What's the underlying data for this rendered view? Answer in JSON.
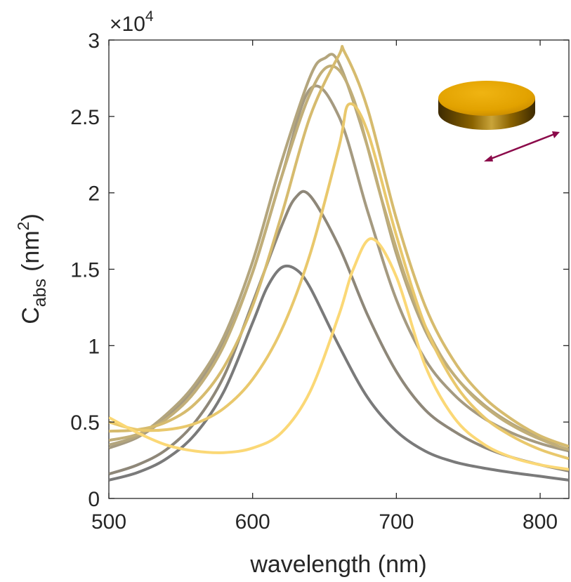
{
  "chart_data": {
    "type": "line",
    "xlabel": "wavelength (nm)",
    "ylabel": {
      "main": "C",
      "subscript": "abs",
      "unit_prefix": "(nm",
      "unit_superscript": "2",
      "unit_suffix": ")"
    },
    "multiplier": {
      "prefix": "×10",
      "exponent": "4"
    },
    "xlim": [
      500,
      820
    ],
    "ylim": [
      0,
      30000
    ],
    "x_ticks": [
      500,
      600,
      700,
      800
    ],
    "y_ticks": [
      0,
      5000,
      10000,
      15000,
      20000,
      25000,
      30000
    ],
    "x_tick_labels": [
      "500",
      "600",
      "700",
      "800"
    ],
    "y_tick_labels": [
      "0",
      "0.5",
      "1",
      "1.5",
      "2",
      "2.5",
      "3"
    ],
    "grid": false,
    "inset": {
      "icon": "gold-disk-icon",
      "polarization_icon": "polarization-arrow-icon",
      "disk_color": "#e2a200",
      "arrow_color": "#8b0a4a"
    },
    "series": [
      {
        "color": "#7a7a7a",
        "x": [
          500,
          520,
          540,
          560,
          580,
          600,
          610,
          620,
          630,
          640,
          660,
          680,
          700,
          720,
          740,
          760,
          780,
          800,
          820
        ],
        "y": [
          1200,
          1700,
          2600,
          4200,
          7000,
          11500,
          13800,
          15100,
          15000,
          13800,
          10000,
          6600,
          4400,
          3100,
          2400,
          2000,
          1700,
          1450,
          1200
        ]
      },
      {
        "color": "#8e8779",
        "x": [
          500,
          520,
          540,
          560,
          580,
          600,
          620,
          630,
          640,
          660,
          680,
          700,
          720,
          740,
          760,
          780,
          800,
          820
        ],
        "y": [
          1600,
          2200,
          3200,
          5000,
          8000,
          12800,
          17800,
          19700,
          19800,
          16500,
          12000,
          8300,
          5800,
          4400,
          3400,
          2700,
          2200,
          1800
        ]
      },
      {
        "color": "#a59a80",
        "x": [
          500,
          520,
          540,
          560,
          580,
          600,
          620,
          640,
          660,
          680,
          700,
          720,
          740,
          760,
          780,
          800,
          820
        ],
        "y": [
          3300,
          4000,
          5300,
          7300,
          10200,
          14800,
          21000,
          26800,
          25000,
          18800,
          13000,
          9100,
          6800,
          5300,
          4300,
          3600,
          3100
        ]
      },
      {
        "color": "#b3a57d",
        "x": [
          500,
          520,
          540,
          560,
          580,
          600,
          620,
          640,
          650,
          660,
          680,
          700,
          720,
          740,
          760,
          780,
          800,
          820
        ],
        "y": [
          3500,
          4100,
          5500,
          7500,
          10600,
          15500,
          22000,
          27600,
          28800,
          28500,
          23000,
          16000,
          11000,
          8100,
          6200,
          4900,
          4000,
          3400
        ]
      },
      {
        "color": "#c1ae78",
        "x": [
          500,
          520,
          540,
          560,
          580,
          600,
          620,
          640,
          655,
          670,
          690,
          710,
          730,
          750,
          770,
          790,
          810,
          820
        ],
        "y": [
          3800,
          4200,
          5200,
          7000,
          10000,
          14800,
          21000,
          26500,
          28300,
          26200,
          19500,
          13500,
          9500,
          7000,
          5400,
          4300,
          3500,
          3200
        ]
      },
      {
        "color": "#d6bb6e",
        "x": [
          500,
          520,
          540,
          560,
          580,
          600,
          620,
          640,
          660,
          664,
          680,
          700,
          720,
          740,
          760,
          780,
          800,
          820
        ],
        "y": [
          4400,
          4500,
          5000,
          6200,
          8600,
          12600,
          18500,
          25000,
          29000,
          29200,
          25500,
          18300,
          12600,
          9000,
          6700,
          5200,
          4100,
          3400
        ]
      },
      {
        "color": "#e9c86c",
        "x": [
          500,
          520,
          540,
          560,
          580,
          600,
          620,
          640,
          660,
          667,
          680,
          700,
          720,
          740,
          760,
          780,
          800,
          820
        ],
        "y": [
          5000,
          4500,
          4500,
          4900,
          5900,
          7800,
          11000,
          16000,
          23000,
          25800,
          24000,
          17200,
          11300,
          7600,
          5400,
          4100,
          3200,
          2600
        ]
      },
      {
        "color": "#fbd876",
        "x": [
          500,
          520,
          540,
          560,
          580,
          600,
          620,
          640,
          660,
          670,
          683,
          700,
          720,
          740,
          760,
          780,
          800,
          820
        ],
        "y": [
          5300,
          4300,
          3500,
          3100,
          3000,
          3300,
          4300,
          7000,
          12000,
          15000,
          17000,
          14500,
          8700,
          5300,
          3600,
          2700,
          2200,
          1900
        ]
      }
    ]
  }
}
